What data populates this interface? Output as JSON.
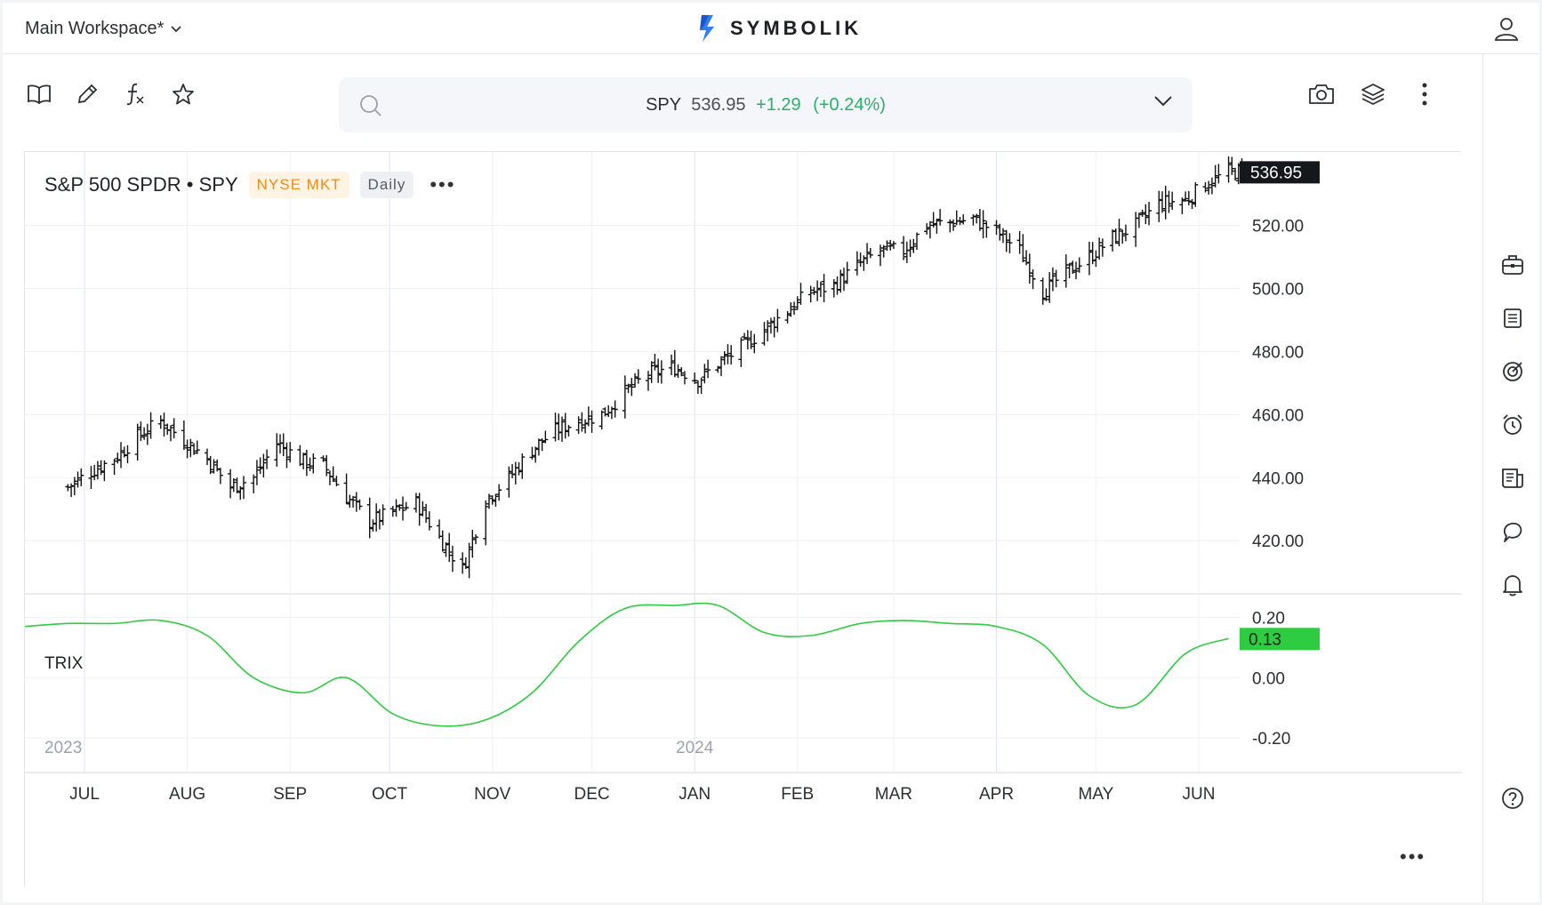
{
  "topbar": {
    "workspace": "Main Workspace*",
    "brand": "SYMBOLIK"
  },
  "quote": {
    "symbol": "SPY",
    "last": "536.95",
    "change": "+1.29",
    "change_pct": "(+0.24%)"
  },
  "chart_header": {
    "instrument": "S&P 500 SPDR • SPY",
    "exchange": "NYSE MKT",
    "interval": "Daily",
    "menu": "•••"
  },
  "indicator": {
    "name": "TRIX",
    "last": "0.13",
    "last_label": "0.13"
  },
  "axis_more": "•••",
  "colors": {
    "up": "#27b36a",
    "trix_line": "#2ecc40",
    "trix_badge": "#2ecc40",
    "price_badge": "#14171c",
    "accent": "#2f7cf6",
    "exchange": "#f08c1a"
  },
  "icons": {
    "left_tools": [
      "book-icon",
      "pencil-icon",
      "function-icon",
      "star-icon"
    ],
    "right_tools": [
      "camera-icon",
      "layers-icon",
      "more-vertical-icon"
    ],
    "rail": [
      "briefcase-icon",
      "list-icon",
      "target-icon",
      "alarm-icon",
      "news-icon",
      "chat-icon",
      "bell-icon",
      "help-icon"
    ]
  },
  "chart_data": [
    {
      "type": "ohlc",
      "name": "SPY",
      "x_axis": {
        "months": [
          "JUL",
          "AUG",
          "SEP",
          "OCT",
          "NOV",
          "DEC",
          "JAN",
          "FEB",
          "MAR",
          "APR",
          "MAY",
          "JUN"
        ],
        "years": [
          "2023",
          "2024"
        ]
      },
      "y_axis": {
        "ticks": [
          "520.00",
          "500.00",
          "480.00",
          "460.00",
          "440.00",
          "420.00"
        ],
        "range": [
          404,
          541
        ]
      },
      "last_price": 536.95,
      "last_label": "536.95",
      "x": [
        "2023-06-26",
        "2023-07-03",
        "2023-07-10",
        "2023-07-17",
        "2023-07-24",
        "2023-07-31",
        "2023-08-07",
        "2023-08-14",
        "2023-08-21",
        "2023-08-28",
        "2023-09-05",
        "2023-09-11",
        "2023-09-18",
        "2023-09-25",
        "2023-10-02",
        "2023-10-09",
        "2023-10-16",
        "2023-10-23",
        "2023-10-30",
        "2023-11-06",
        "2023-11-13",
        "2023-11-20",
        "2023-11-27",
        "2023-12-04",
        "2023-12-11",
        "2023-12-18",
        "2023-12-26",
        "2024-01-02",
        "2024-01-08",
        "2024-01-16",
        "2024-01-22",
        "2024-01-29",
        "2024-02-05",
        "2024-02-12",
        "2024-02-20",
        "2024-02-26",
        "2024-03-04",
        "2024-03-11",
        "2024-03-18",
        "2024-03-25",
        "2024-04-01",
        "2024-04-08",
        "2024-04-15",
        "2024-04-22",
        "2024-04-29",
        "2024-05-06",
        "2024-05-13",
        "2024-05-20",
        "2024-05-28",
        "2024-06-03",
        "2024-06-10"
      ],
      "close": [
        437,
        442,
        446,
        453,
        458,
        452,
        446,
        437,
        440,
        451,
        445,
        444,
        434,
        426,
        429,
        432,
        421,
        411,
        433,
        440,
        449,
        455,
        458,
        460,
        467,
        473,
        475,
        471,
        476,
        482,
        487,
        493,
        499,
        501,
        508,
        512,
        512,
        520,
        521,
        522,
        518,
        512,
        499,
        505,
        510,
        516,
        520,
        527,
        528,
        533,
        537
      ],
      "series": [
        {
          "name": "TRIX",
          "type": "line",
          "x": [
            "2023-06-26",
            "2023-07-10",
            "2023-07-24",
            "2023-08-07",
            "2023-08-21",
            "2023-09-05",
            "2023-09-18",
            "2023-10-02",
            "2023-10-16",
            "2023-10-30",
            "2023-11-13",
            "2023-11-27",
            "2023-12-11",
            "2023-12-26",
            "2024-01-08",
            "2024-01-22",
            "2024-02-05",
            "2024-02-20",
            "2024-03-04",
            "2024-03-18",
            "2024-04-01",
            "2024-04-15",
            "2024-04-29",
            "2024-05-13",
            "2024-05-28",
            "2024-06-10"
          ],
          "values": [
            0.18,
            0.18,
            0.19,
            0.14,
            0.0,
            -0.05,
            0.0,
            -0.12,
            -0.16,
            -0.14,
            -0.05,
            0.12,
            0.23,
            0.24,
            0.24,
            0.15,
            0.14,
            0.18,
            0.19,
            0.18,
            0.17,
            0.11,
            -0.06,
            -0.09,
            0.08,
            0.13
          ]
        }
      ],
      "trix_axis": {
        "ticks": [
          "0.20",
          "0.00",
          "-0.20"
        ],
        "range": [
          -0.25,
          0.24
        ]
      },
      "grid": true
    }
  ]
}
